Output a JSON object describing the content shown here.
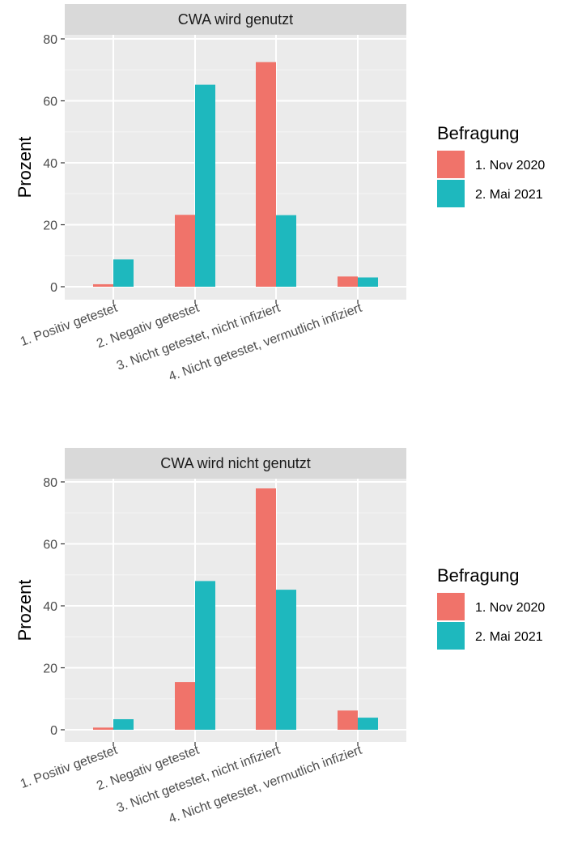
{
  "legend": {
    "title": "Befragung",
    "items": [
      "1. Nov 2020",
      "2. Mai 2021"
    ],
    "colors": [
      "#F0736A",
      "#1EB8BE"
    ]
  },
  "chart_data": [
    {
      "type": "bar",
      "title": "CWA wird genutzt",
      "xlabel": "",
      "ylabel": "Prozent",
      "ylim": [
        0,
        80
      ],
      "yticks": [
        0,
        20,
        40,
        60,
        80
      ],
      "grid": true,
      "legend_position": "right",
      "categories": [
        "1. Positiv getestet",
        "2. Negativ getestet",
        "3. Nicht getestet, nicht infiziert",
        "4. Nicht getestet, vermutlich infiziert"
      ],
      "series": [
        {
          "name": "1. Nov 2020",
          "color": "#F0736A",
          "values": [
            0.8,
            23.2,
            72.5,
            3.3
          ]
        },
        {
          "name": "2. Mai 2021",
          "color": "#1EB8BE",
          "values": [
            8.8,
            65.2,
            23.1,
            3.0
          ]
        }
      ]
    },
    {
      "type": "bar",
      "title": "CWA wird nicht genutzt",
      "xlabel": "",
      "ylabel": "Prozent",
      "ylim": [
        0,
        80
      ],
      "yticks": [
        0,
        20,
        40,
        60,
        80
      ],
      "grid": true,
      "legend_position": "right",
      "categories": [
        "1. Positiv getestet",
        "2. Negativ getestet",
        "3. Nicht getestet, nicht infiziert",
        "4. Nicht getestet, vermutlich infiziert"
      ],
      "series": [
        {
          "name": "1. Nov 2020",
          "color": "#F0736A",
          "values": [
            0.7,
            15.4,
            77.9,
            6.2
          ]
        },
        {
          "name": "2. Mai 2021",
          "color": "#1EB8BE",
          "values": [
            3.4,
            48.0,
            45.2,
            3.9
          ]
        }
      ]
    }
  ]
}
